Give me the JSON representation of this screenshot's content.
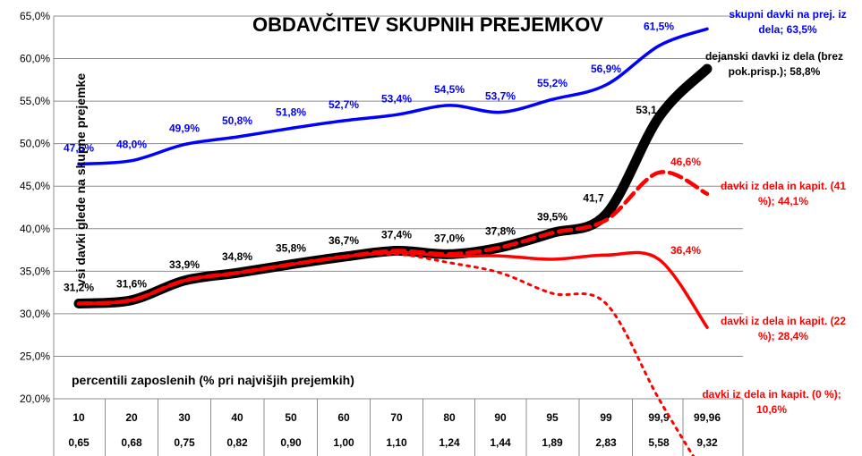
{
  "chart_data": {
    "type": "line",
    "title": "OBDAVČITEV SKUPNIH PREJEMKOV",
    "ylabel": "vsi davki glede na skupne prejemke",
    "xlabel": "percentili zaposlenih (% pri najvišjih prejemkih)",
    "ylim": [
      20,
      65
    ],
    "yticks": [
      "20,0%",
      "25,0%",
      "30,0%",
      "35,0%",
      "40,0%",
      "45,0%",
      "50,0%",
      "55,0%",
      "60,0%",
      "65,0%"
    ],
    "grid": true,
    "categories": [
      "10",
      "20",
      "30",
      "40",
      "50",
      "60",
      "70",
      "80",
      "90",
      "95",
      "99",
      "99,9",
      "99,96"
    ],
    "categories_secondary": [
      "0,65",
      "0,68",
      "0,75",
      "0,82",
      "0,90",
      "1,00",
      "1,10",
      "1,24",
      "1,44",
      "1,89",
      "2,83",
      "5,58",
      "9,32"
    ],
    "series": [
      {
        "name": "skupni davki na prej. iz dela; 63,5%",
        "color": "#0000ff",
        "style": "solid",
        "values": [
          47.6,
          48.0,
          49.9,
          50.8,
          51.8,
          52.7,
          53.4,
          54.5,
          53.7,
          55.2,
          56.9,
          61.5,
          63.5
        ],
        "labels": [
          "47,6%",
          "48,0%",
          "49,9%",
          "50,8%",
          "51,8%",
          "52,7%",
          "53,4%",
          "54,5%",
          "53,7%",
          "55,2%",
          "56,9%",
          "61,5%",
          ""
        ]
      },
      {
        "name": "dejanski davki iz dela (brez pok.prisp.); 58,8%",
        "color": "#000000",
        "style": "thick",
        "values": [
          31.2,
          31.6,
          33.9,
          34.8,
          35.8,
          36.7,
          37.4,
          37.0,
          37.8,
          39.5,
          41.7,
          53.1,
          58.8
        ],
        "labels": [
          "31,2%",
          "31,6%",
          "33,9%",
          "34,8%",
          "35,8%",
          "36,7%",
          "37,4%",
          "37,0%",
          "37,8%",
          "39,5%",
          "41,7",
          "53,1",
          ""
        ]
      },
      {
        "name": "davki iz dela in kapit. (41 %); 44,1%",
        "color": "#ff0000",
        "style": "dashed",
        "values": [
          31.2,
          31.6,
          33.9,
          34.8,
          35.8,
          36.7,
          37.4,
          37.0,
          37.8,
          39.5,
          41.0,
          46.6,
          44.1
        ],
        "labels": [
          "",
          "",
          "",
          "",
          "",
          "",
          "",
          "",
          "",
          "",
          "",
          "46,6%",
          ""
        ]
      },
      {
        "name": "davki iz dela in kapit. (22 %); 28,4%",
        "color": "#ff0000",
        "style": "solid",
        "values": [
          31.2,
          31.6,
          33.9,
          34.8,
          35.8,
          36.7,
          37.2,
          36.8,
          36.8,
          36.4,
          36.9,
          36.4,
          28.4
        ],
        "labels": [
          "",
          "",
          "",
          "",
          "",
          "",
          "",
          "",
          "",
          "",
          "",
          "36,4%",
          ""
        ]
      },
      {
        "name": "davki iz dela in kapit. (0 %); 10,6%",
        "color": "#ff0000",
        "style": "dotted",
        "values": [
          31.2,
          31.6,
          33.9,
          34.8,
          35.8,
          36.7,
          37.0,
          36.0,
          34.8,
          32.4,
          31.2,
          20.0,
          10.6
        ],
        "labels": [
          "",
          "",
          "",
          "",
          "",
          "",
          "",
          "",
          "",
          "",
          "",
          "",
          ""
        ]
      }
    ],
    "annotations": [
      {
        "text": [
          "skupni davki na prej. iz",
          "dela; 63,5%"
        ],
        "color": "#0000ff"
      },
      {
        "text": [
          "dejanski davki iz dela (brez",
          "pok.prisp.); 58,8%"
        ],
        "color": "#000000"
      },
      {
        "text": [
          "davki iz dela in kapit. (41",
          "%); 44,1%"
        ],
        "color": "#ff0000"
      },
      {
        "text": [
          "davki iz dela in kapit. (22",
          "%); 28,4%"
        ],
        "color": "#ff0000"
      },
      {
        "text": [
          "davki iz dela in kapit. (0 %);",
          "10,6%"
        ],
        "color": "#ff0000"
      }
    ]
  }
}
